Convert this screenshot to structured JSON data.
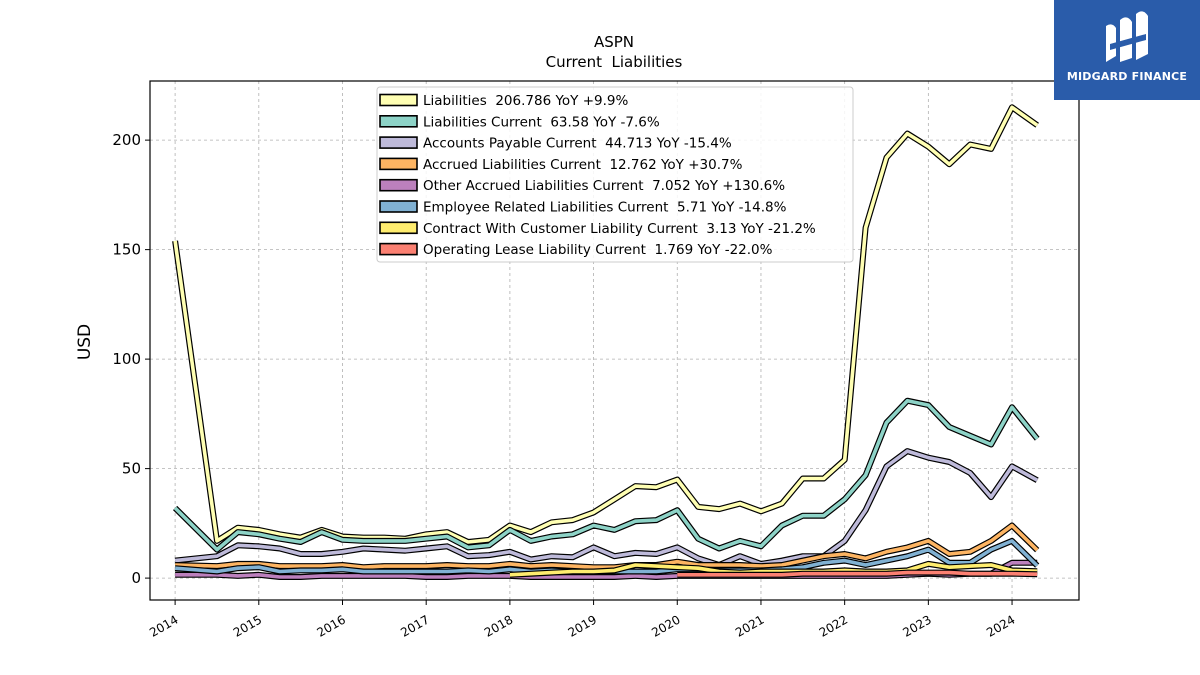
{
  "brand": {
    "name": "MIDGARD FINANCE",
    "logo_icon": "midgard-logo-icon",
    "color": "#2a5caa"
  },
  "chart_data": {
    "type": "line",
    "title": "ASPN",
    "subtitle": "Current  Liabilities",
    "xlabel": "",
    "ylabel": "USD",
    "xlim": [
      2013.7,
      2024.8
    ],
    "ylim": [
      -10,
      227
    ],
    "yticks": [
      0,
      50,
      100,
      150,
      200
    ],
    "xticks": [
      "2014",
      "2015",
      "2016",
      "2017",
      "2018",
      "2019",
      "2020",
      "2021",
      "2022",
      "2023",
      "2024"
    ],
    "grid": true,
    "legend_position": "top-center",
    "series": [
      {
        "name": "Liabilities",
        "legend": "Liabilities  206.786 YoY +9.9%",
        "color": "#ffffb3",
        "points": [
          [
            2014.0,
            154
          ],
          [
            2014.5,
            17
          ],
          [
            2014.75,
            23
          ],
          [
            2015.0,
            22
          ],
          [
            2015.25,
            20
          ],
          [
            2015.5,
            18.5
          ],
          [
            2015.75,
            22
          ],
          [
            2016.0,
            19
          ],
          [
            2016.25,
            18.5
          ],
          [
            2016.5,
            18.5
          ],
          [
            2016.75,
            18
          ],
          [
            2017.0,
            20
          ],
          [
            2017.25,
            21
          ],
          [
            2017.5,
            16.5
          ],
          [
            2017.75,
            17.5
          ],
          [
            2018.0,
            24
          ],
          [
            2018.25,
            21
          ],
          [
            2018.5,
            25.5
          ],
          [
            2018.75,
            26.5
          ],
          [
            2019.0,
            30
          ],
          [
            2019.25,
            36
          ],
          [
            2019.5,
            42
          ],
          [
            2019.75,
            41.5
          ],
          [
            2020.0,
            45
          ],
          [
            2020.25,
            32.5
          ],
          [
            2020.5,
            31.5
          ],
          [
            2020.75,
            34
          ],
          [
            2021.0,
            30.5
          ],
          [
            2021.25,
            34
          ],
          [
            2021.5,
            45.5
          ],
          [
            2021.75,
            45.5
          ],
          [
            2022.0,
            54
          ],
          [
            2022.25,
            160
          ],
          [
            2022.5,
            192
          ],
          [
            2022.75,
            203
          ],
          [
            2023.0,
            197
          ],
          [
            2023.25,
            189
          ],
          [
            2023.5,
            198
          ],
          [
            2023.75,
            196
          ],
          [
            2024.0,
            215
          ],
          [
            2024.3,
            206.8
          ]
        ]
      },
      {
        "name": "Liabilities Current",
        "legend": "Liabilities Current  63.58 YoY -7.6%",
        "color": "#8dd3c7",
        "points": [
          [
            2014.0,
            32
          ],
          [
            2014.5,
            13
          ],
          [
            2014.75,
            21
          ],
          [
            2015.0,
            20
          ],
          [
            2015.25,
            18
          ],
          [
            2015.5,
            16.5
          ],
          [
            2015.75,
            21
          ],
          [
            2016.0,
            17.5
          ],
          [
            2016.25,
            17
          ],
          [
            2016.5,
            17
          ],
          [
            2016.75,
            17
          ],
          [
            2017.0,
            18
          ],
          [
            2017.25,
            19
          ],
          [
            2017.5,
            14
          ],
          [
            2017.75,
            15
          ],
          [
            2018.0,
            22
          ],
          [
            2018.25,
            17
          ],
          [
            2018.5,
            19
          ],
          [
            2018.75,
            20
          ],
          [
            2019.0,
            24
          ],
          [
            2019.25,
            22
          ],
          [
            2019.5,
            26
          ],
          [
            2019.75,
            26.5
          ],
          [
            2020.0,
            31
          ],
          [
            2020.25,
            18
          ],
          [
            2020.5,
            13.5
          ],
          [
            2020.75,
            17
          ],
          [
            2021.0,
            14.5
          ],
          [
            2021.25,
            24
          ],
          [
            2021.5,
            28.5
          ],
          [
            2021.75,
            28.5
          ],
          [
            2022.0,
            36
          ],
          [
            2022.25,
            47
          ],
          [
            2022.5,
            71
          ],
          [
            2022.75,
            81
          ],
          [
            2023.0,
            79
          ],
          [
            2023.25,
            69
          ],
          [
            2023.5,
            65
          ],
          [
            2023.75,
            61
          ],
          [
            2024.0,
            78
          ],
          [
            2024.3,
            63.6
          ]
        ]
      },
      {
        "name": "Accounts Payable Current",
        "legend": "Accounts Payable Current  44.713 YoY -15.4%",
        "color": "#bebada",
        "points": [
          [
            2014.0,
            8
          ],
          [
            2014.5,
            10
          ],
          [
            2014.75,
            15
          ],
          [
            2015.0,
            14.5
          ],
          [
            2015.25,
            13.5
          ],
          [
            2015.5,
            11
          ],
          [
            2015.75,
            11
          ],
          [
            2016.0,
            12
          ],
          [
            2016.25,
            13.5
          ],
          [
            2016.5,
            13
          ],
          [
            2016.75,
            12.5
          ],
          [
            2017.0,
            13.5
          ],
          [
            2017.25,
            14.5
          ],
          [
            2017.5,
            10
          ],
          [
            2017.75,
            10.5
          ],
          [
            2018.0,
            12
          ],
          [
            2018.25,
            8.5
          ],
          [
            2018.5,
            10
          ],
          [
            2018.75,
            9.5
          ],
          [
            2019.0,
            14
          ],
          [
            2019.25,
            10
          ],
          [
            2019.5,
            11.5
          ],
          [
            2019.75,
            11
          ],
          [
            2020.0,
            14
          ],
          [
            2020.25,
            9
          ],
          [
            2020.5,
            6
          ],
          [
            2020.75,
            10
          ],
          [
            2021.0,
            6.5
          ],
          [
            2021.25,
            8
          ],
          [
            2021.5,
            10
          ],
          [
            2021.75,
            10
          ],
          [
            2022.0,
            17
          ],
          [
            2022.25,
            31
          ],
          [
            2022.5,
            51
          ],
          [
            2022.75,
            58
          ],
          [
            2023.0,
            55
          ],
          [
            2023.25,
            53
          ],
          [
            2023.5,
            48
          ],
          [
            2023.75,
            37
          ],
          [
            2024.0,
            51
          ],
          [
            2024.3,
            44.7
          ]
        ]
      },
      {
        "name": "Accrued Liabilities Current",
        "legend": "Accrued Liabilities Current  12.762 YoY +30.7%",
        "color": "#fdb462",
        "points": [
          [
            2014.0,
            6
          ],
          [
            2014.5,
            5.5
          ],
          [
            2014.75,
            6.5
          ],
          [
            2015.0,
            6.5
          ],
          [
            2015.25,
            5.5
          ],
          [
            2015.5,
            5.5
          ],
          [
            2015.75,
            5.5
          ],
          [
            2016.0,
            6
          ],
          [
            2016.25,
            5
          ],
          [
            2016.5,
            5.5
          ],
          [
            2016.75,
            5.5
          ],
          [
            2017.0,
            5.5
          ],
          [
            2017.25,
            6
          ],
          [
            2017.5,
            5.5
          ],
          [
            2017.75,
            5.5
          ],
          [
            2018.0,
            6.5
          ],
          [
            2018.25,
            5.5
          ],
          [
            2018.5,
            6
          ],
          [
            2018.75,
            5.5
          ],
          [
            2019.0,
            5
          ],
          [
            2019.25,
            5
          ],
          [
            2019.5,
            6
          ],
          [
            2019.75,
            6
          ],
          [
            2020.0,
            7.5
          ],
          [
            2020.25,
            6
          ],
          [
            2020.5,
            6
          ],
          [
            2020.75,
            6
          ],
          [
            2021.0,
            5.5
          ],
          [
            2021.25,
            6
          ],
          [
            2021.5,
            8
          ],
          [
            2021.75,
            10
          ],
          [
            2022.0,
            11
          ],
          [
            2022.25,
            9
          ],
          [
            2022.5,
            12
          ],
          [
            2022.75,
            14
          ],
          [
            2023.0,
            17
          ],
          [
            2023.25,
            11
          ],
          [
            2023.5,
            12
          ],
          [
            2023.75,
            17
          ],
          [
            2024.0,
            24
          ],
          [
            2024.3,
            12.8
          ]
        ]
      },
      {
        "name": "Other Accrued Liabilities Current",
        "legend": "Other Accrued Liabilities Current  7.052 YoY +130.6%",
        "color": "#bc80bd",
        "points": [
          [
            2014.0,
            1.5
          ],
          [
            2014.5,
            1.5
          ],
          [
            2014.75,
            1
          ],
          [
            2015.0,
            1.5
          ],
          [
            2015.25,
            0.5
          ],
          [
            2015.5,
            0.5
          ],
          [
            2015.75,
            1
          ],
          [
            2016.0,
            1
          ],
          [
            2016.25,
            1
          ],
          [
            2016.5,
            1
          ],
          [
            2016.75,
            1
          ],
          [
            2017.0,
            0.5
          ],
          [
            2017.25,
            0.5
          ],
          [
            2017.5,
            1
          ],
          [
            2017.75,
            1
          ],
          [
            2018.0,
            1
          ],
          [
            2018.25,
            0.5
          ],
          [
            2018.5,
            0.5
          ],
          [
            2018.75,
            0.5
          ],
          [
            2019.0,
            0.5
          ],
          [
            2019.25,
            0.5
          ],
          [
            2019.5,
            1
          ],
          [
            2019.75,
            0.5
          ],
          [
            2020.0,
            1
          ],
          [
            2020.25,
            1
          ],
          [
            2020.5,
            1
          ],
          [
            2020.75,
            1
          ],
          [
            2021.0,
            1
          ],
          [
            2021.25,
            1
          ],
          [
            2021.5,
            1
          ],
          [
            2021.75,
            1
          ],
          [
            2022.0,
            1
          ],
          [
            2022.25,
            1
          ],
          [
            2022.5,
            1
          ],
          [
            2022.75,
            1.5
          ],
          [
            2023.0,
            2
          ],
          [
            2023.25,
            1.5
          ],
          [
            2023.5,
            2
          ],
          [
            2023.75,
            2
          ],
          [
            2024.0,
            7
          ],
          [
            2024.3,
            7.05
          ]
        ]
      },
      {
        "name": "Employee Related Liabilities Current",
        "legend": "Employee Related Liabilities Current  5.71 YoY -14.8%",
        "color": "#80b1d3",
        "points": [
          [
            2014.0,
            4.5
          ],
          [
            2014.5,
            3
          ],
          [
            2014.75,
            4.5
          ],
          [
            2015.0,
            5
          ],
          [
            2015.25,
            3
          ],
          [
            2015.5,
            3.5
          ],
          [
            2015.75,
            3.5
          ],
          [
            2016.0,
            4
          ],
          [
            2016.25,
            3
          ],
          [
            2016.5,
            3
          ],
          [
            2016.75,
            3
          ],
          [
            2017.0,
            3
          ],
          [
            2017.25,
            3
          ],
          [
            2017.5,
            3.5
          ],
          [
            2017.75,
            3
          ],
          [
            2018.0,
            4
          ],
          [
            2018.25,
            3
          ],
          [
            2018.5,
            3.5
          ],
          [
            2018.75,
            3
          ],
          [
            2019.0,
            3
          ],
          [
            2019.25,
            3
          ],
          [
            2019.5,
            3
          ],
          [
            2019.75,
            3
          ],
          [
            2020.0,
            4
          ],
          [
            2020.25,
            4
          ],
          [
            2020.5,
            3.5
          ],
          [
            2020.75,
            3.5
          ],
          [
            2021.0,
            3.5
          ],
          [
            2021.25,
            4
          ],
          [
            2021.5,
            5
          ],
          [
            2021.75,
            7
          ],
          [
            2022.0,
            8
          ],
          [
            2022.25,
            6
          ],
          [
            2022.5,
            8
          ],
          [
            2022.75,
            10
          ],
          [
            2023.0,
            13
          ],
          [
            2023.25,
            7
          ],
          [
            2023.5,
            7
          ],
          [
            2023.75,
            13
          ],
          [
            2024.0,
            17
          ],
          [
            2024.3,
            5.7
          ]
        ]
      },
      {
        "name": "Contract With Customer Liability Current",
        "legend": "Contract With Customer Liability Current  3.13 YoY -21.2%",
        "color": "#ffed6f",
        "points": [
          [
            2018.0,
            1.5
          ],
          [
            2018.25,
            2
          ],
          [
            2018.5,
            2.5
          ],
          [
            2018.75,
            3
          ],
          [
            2019.0,
            3
          ],
          [
            2019.25,
            3.5
          ],
          [
            2019.5,
            6
          ],
          [
            2019.75,
            5.5
          ],
          [
            2020.0,
            5
          ],
          [
            2020.25,
            4.5
          ],
          [
            2020.5,
            3
          ],
          [
            2020.75,
            2.5
          ],
          [
            2021.0,
            3
          ],
          [
            2021.25,
            3
          ],
          [
            2021.5,
            3
          ],
          [
            2021.75,
            3
          ],
          [
            2022.0,
            3.5
          ],
          [
            2022.25,
            3
          ],
          [
            2022.5,
            3
          ],
          [
            2022.75,
            3.5
          ],
          [
            2023.0,
            6.5
          ],
          [
            2023.25,
            5
          ],
          [
            2023.5,
            5.5
          ],
          [
            2023.75,
            6
          ],
          [
            2024.0,
            3.5
          ],
          [
            2024.3,
            3.13
          ]
        ]
      },
      {
        "name": "Operating Lease Liability Current",
        "legend": "Operating Lease Liability Current  1.769 YoY -22.0%",
        "color": "#fb8072",
        "points": [
          [
            2020.0,
            1.5
          ],
          [
            2020.25,
            1.5
          ],
          [
            2020.5,
            1.5
          ],
          [
            2020.75,
            1.5
          ],
          [
            2021.0,
            1.5
          ],
          [
            2021.25,
            1.5
          ],
          [
            2021.5,
            2
          ],
          [
            2021.75,
            2
          ],
          [
            2022.0,
            2
          ],
          [
            2022.25,
            2
          ],
          [
            2022.5,
            2
          ],
          [
            2022.75,
            2.5
          ],
          [
            2023.0,
            2.5
          ],
          [
            2023.25,
            2.5
          ],
          [
            2023.5,
            2
          ],
          [
            2023.75,
            2
          ],
          [
            2024.0,
            2
          ],
          [
            2024.3,
            1.77
          ]
        ]
      }
    ]
  }
}
